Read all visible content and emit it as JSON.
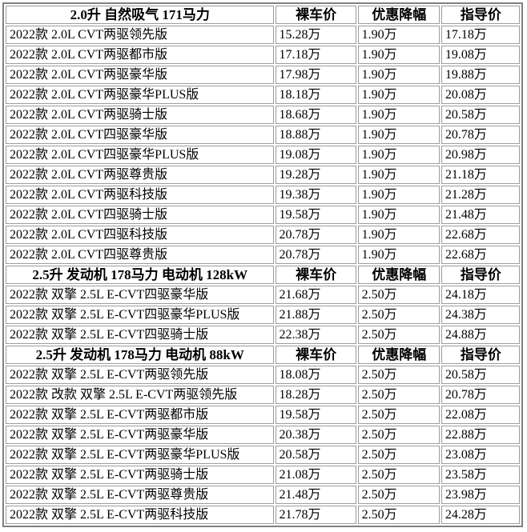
{
  "table": {
    "columns": {
      "bare_price_label": "裸车价",
      "discount_label": "优惠降幅",
      "guide_price_label": "指导价"
    },
    "sections": [
      {
        "title": "2.0升 自然吸气 171马力",
        "rows": [
          {
            "name": "2022款 2.0L CVT两驱领先版",
            "bare": "15.28万",
            "discount": "1.90万",
            "guide": "17.18万"
          },
          {
            "name": "2022款 2.0L CVT两驱都市版",
            "bare": "17.18万",
            "discount": "1.90万",
            "guide": "19.08万"
          },
          {
            "name": "2022款 2.0L CVT两驱豪华版",
            "bare": "17.98万",
            "discount": "1.90万",
            "guide": "19.88万"
          },
          {
            "name": "2022款 2.0L CVT两驱豪华PLUS版",
            "bare": "18.18万",
            "discount": "1.90万",
            "guide": "20.08万"
          },
          {
            "name": "2022款 2.0L CVT两驱骑士版",
            "bare": "18.68万",
            "discount": "1.90万",
            "guide": "20.58万"
          },
          {
            "name": "2022款 2.0L CVT四驱豪华版",
            "bare": "18.88万",
            "discount": "1.90万",
            "guide": "20.78万"
          },
          {
            "name": "2022款 2.0L CVT四驱豪华PLUS版",
            "bare": "19.08万",
            "discount": "1.90万",
            "guide": "20.98万"
          },
          {
            "name": "2022款 2.0L CVT两驱尊贵版",
            "bare": "19.28万",
            "discount": "1.90万",
            "guide": "21.18万"
          },
          {
            "name": "2022款 2.0L CVT两驱科技版",
            "bare": "19.38万",
            "discount": "1.90万",
            "guide": "21.28万"
          },
          {
            "name": "2022款 2.0L CVT四驱骑士版",
            "bare": "19.58万",
            "discount": "1.90万",
            "guide": "21.48万"
          },
          {
            "name": "2022款 2.0L CVT四驱科技版",
            "bare": "20.78万",
            "discount": "1.90万",
            "guide": "22.68万"
          },
          {
            "name": "2022款 2.0L CVT四驱尊贵版",
            "bare": "20.78万",
            "discount": "1.90万",
            "guide": "22.68万"
          }
        ]
      },
      {
        "title": "2.5升 发动机 178马力 电动机 128kW",
        "rows": [
          {
            "name": "2022款 双擎 2.5L E-CVT四驱豪华版",
            "bare": "21.68万",
            "discount": "2.50万",
            "guide": "24.18万"
          },
          {
            "name": "2022款 双擎 2.5L E-CVT四驱豪华PLUS版",
            "bare": "21.88万",
            "discount": "2.50万",
            "guide": "24.38万"
          },
          {
            "name": "2022款 双擎 2.5L E-CVT四驱骑士版",
            "bare": "22.38万",
            "discount": "2.50万",
            "guide": "24.88万"
          }
        ]
      },
      {
        "title": "2.5升 发动机 178马力 电动机 88kW",
        "rows": [
          {
            "name": "2022款 双擎 2.5L E-CVT两驱领先版",
            "bare": "18.08万",
            "discount": "2.50万",
            "guide": "20.58万"
          },
          {
            "name": "2022款 改款 双擎 2.5L E-CVT两驱领先版",
            "bare": "18.28万",
            "discount": "2.50万",
            "guide": "20.78万"
          },
          {
            "name": "2022款 双擎 2.5L E-CVT两驱都市版",
            "bare": "19.58万",
            "discount": "2.50万",
            "guide": "22.08万"
          },
          {
            "name": "2022款 双擎 2.5L E-CVT两驱豪华版",
            "bare": "20.38万",
            "discount": "2.50万",
            "guide": "22.88万"
          },
          {
            "name": "2022款 双擎 2.5L E-CVT两驱豪华PLUS版",
            "bare": "20.58万",
            "discount": "2.50万",
            "guide": "23.08万"
          },
          {
            "name": "2022款 双擎 2.5L E-CVT两驱骑士版",
            "bare": "21.08万",
            "discount": "2.50万",
            "guide": "23.58万"
          },
          {
            "name": "2022款 双擎 2.5L E-CVT两驱尊贵版",
            "bare": "21.48万",
            "discount": "2.50万",
            "guide": "23.98万"
          },
          {
            "name": "2022款 双擎 2.5L E-CVT两驱科技版",
            "bare": "21.78万",
            "discount": "2.50万",
            "guide": "24.28万"
          }
        ]
      }
    ]
  },
  "colors": {
    "outer_border": "#808080",
    "cell_border": "#9c9c9c",
    "background": "#ffffff",
    "text": "#000000"
  }
}
